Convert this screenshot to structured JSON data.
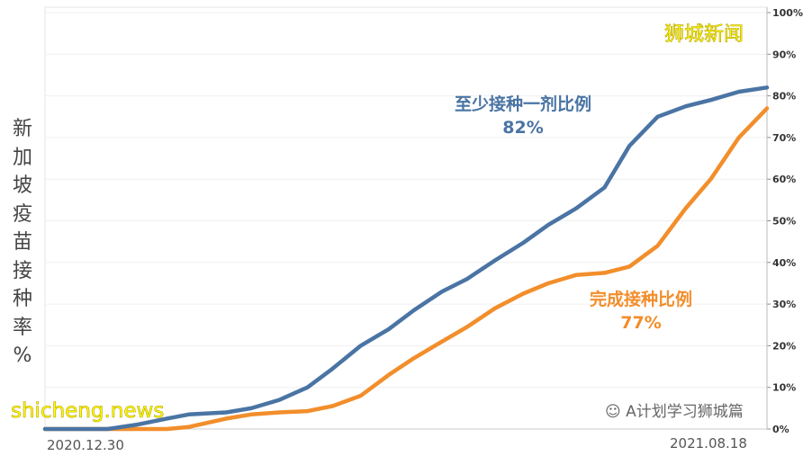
{
  "chart_data": {
    "type": "line",
    "title": "",
    "ylabel": "新加坡疫苗接种率%",
    "xlabel": "",
    "ylim": [
      0,
      100
    ],
    "yticks": [
      "0%",
      "10%",
      "20%",
      "30%",
      "40%",
      "50%",
      "60%",
      "70%",
      "80%",
      "90%",
      "100%"
    ],
    "x_tick_labels": [
      "2020.12.30",
      "2021.08.18"
    ],
    "x_range": [
      "2020-12-30",
      "2021-08-18"
    ],
    "y_axis_side": "right",
    "grid": true,
    "x": [
      "2020-12-30",
      "2021-01-19",
      "2021-01-28",
      "2021-02-07",
      "2021-02-14",
      "2021-02-26",
      "2021-03-06",
      "2021-03-15",
      "2021-03-24",
      "2021-04-01",
      "2021-04-10",
      "2021-04-19",
      "2021-04-27",
      "2021-05-06",
      "2021-05-14",
      "2021-05-23",
      "2021-06-01",
      "2021-06-09",
      "2021-06-18",
      "2021-06-27",
      "2021-07-05",
      "2021-07-14",
      "2021-07-23",
      "2021-07-31",
      "2021-08-09",
      "2021-08-18"
    ],
    "series": [
      {
        "name": "至少接种一剂比例",
        "end_label": "82%",
        "color": "#4a74a4",
        "values": [
          0,
          0,
          1,
          2.5,
          3.5,
          4,
          5,
          7,
          10,
          14.5,
          20,
          24,
          28.5,
          33,
          36,
          40.5,
          44.7,
          49,
          53,
          58,
          68,
          75,
          77.5,
          79,
          81,
          82
        ]
      },
      {
        "name": "完成接种比例",
        "end_label": "77%",
        "color": "#f28e2b",
        "values": [
          0,
          0,
          0,
          0,
          0.5,
          2.5,
          3.5,
          4,
          4.3,
          5.5,
          8,
          13,
          17,
          21,
          24.5,
          29,
          32.5,
          35,
          37,
          37.5,
          39,
          44,
          53,
          60,
          70,
          77
        ]
      }
    ]
  },
  "watermarks": {
    "top_right": "狮城新闻",
    "bottom_left": "shicheng.news",
    "wechat": "A计划学习狮城篇"
  }
}
